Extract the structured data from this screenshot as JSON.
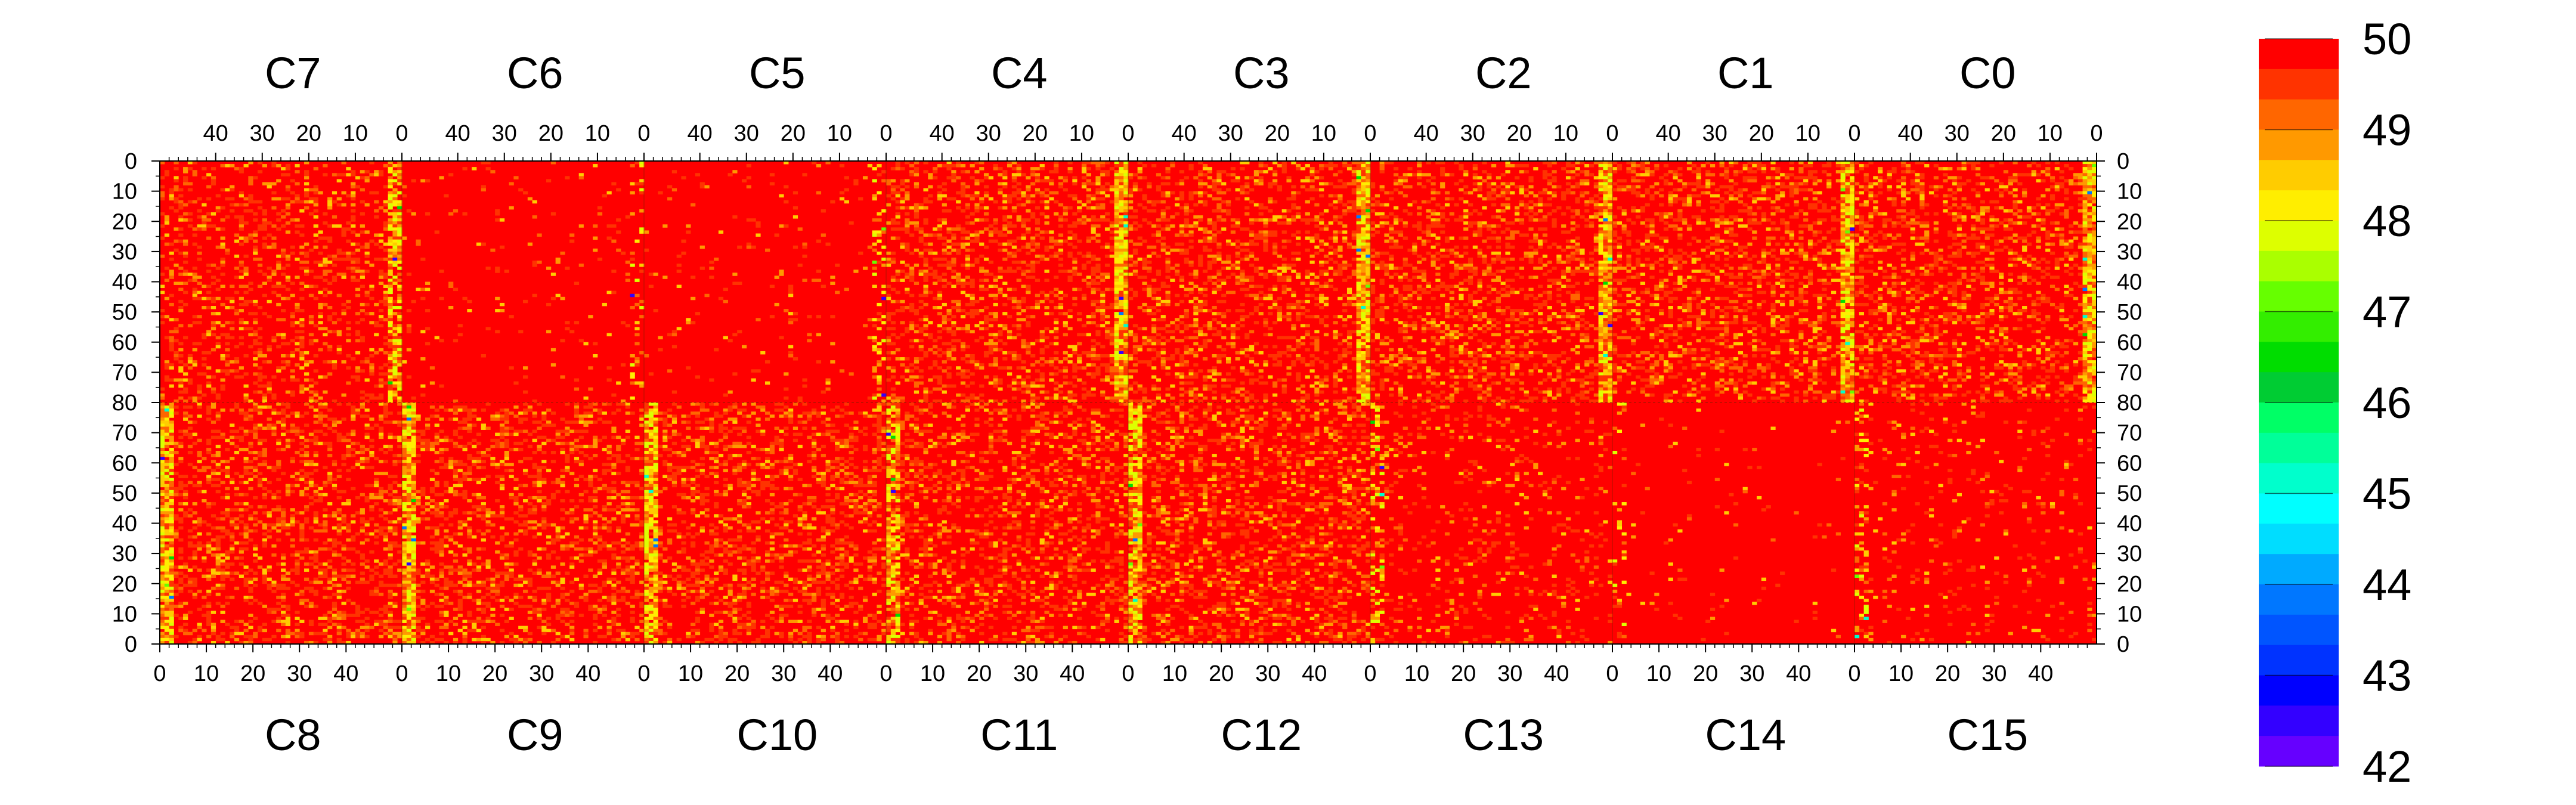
{
  "chart_data": {
    "type": "heatmap",
    "top_chip_labels": [
      "C7",
      "C6",
      "C5",
      "C4",
      "C3",
      "C2",
      "C1",
      "C0"
    ],
    "bottom_chip_labels": [
      "C8",
      "C9",
      "C10",
      "C11",
      "C12",
      "C13",
      "C14",
      "C15"
    ],
    "top_x_tick_labels": [
      "40",
      "30",
      "20",
      "10",
      "0"
    ],
    "bottom_x_tick_labels": [
      "0",
      "10",
      "20",
      "30",
      "40"
    ],
    "y_tick_labels": [
      "0",
      "10",
      "20",
      "30",
      "40",
      "50",
      "60",
      "70",
      "80",
      "70",
      "60",
      "50",
      "40",
      "30",
      "20",
      "10",
      "0"
    ],
    "columns_per_chip": 52,
    "rows_per_half": 80,
    "z_range": [
      42,
      50
    ],
    "colorbar_tick_labels": [
      "50",
      "49",
      "48",
      "47",
      "46",
      "45",
      "44",
      "43",
      "42"
    ],
    "colorbar_colors": [
      "#FF0000",
      "#FF3300",
      "#FF6600",
      "#FF9900",
      "#FFCC00",
      "#FFEE00",
      "#DDFF00",
      "#AAFF00",
      "#66FF00",
      "#33EE00",
      "#00DD00",
      "#00CC33",
      "#00FF66",
      "#00FF99",
      "#00FFCC",
      "#00FFFF",
      "#00DDFF",
      "#00AAFF",
      "#0077FF",
      "#0055FF",
      "#0033FF",
      "#0000FF",
      "#3300FF",
      "#6600FF"
    ],
    "chip_noise_level": [
      0.33,
      0.33,
      0.33,
      0.33,
      0.33,
      0.05,
      0.05,
      0.25,
      0.33,
      0.33,
      0.33,
      0.3,
      0.33,
      0.12,
      0.02,
      0.08
    ],
    "value_note": "Most pixels at 50 (red); scattered pixels 48–49 (orange/yellow), a few down to ~44 (blue) near chip column 0."
  }
}
